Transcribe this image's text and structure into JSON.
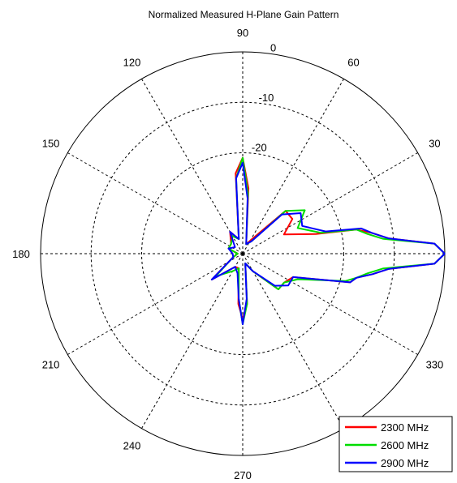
{
  "chart_data": {
    "type": "polar-line",
    "title": "Normalized Measured H-Plane Gain Pattern",
    "angle_ticks": [
      "0",
      "30",
      "60",
      "90",
      "120",
      "150",
      "180",
      "210",
      "240",
      "270",
      "300",
      "330"
    ],
    "angle_labels_shown": [
      "30",
      "60",
      "90",
      "120",
      "150",
      "180",
      "210",
      "240",
      "270",
      "330"
    ],
    "radial_ticks": [
      {
        "value": -20,
        "label": "-20"
      },
      {
        "value": -10,
        "label": "-10"
      },
      {
        "value": 0,
        "label": "0"
      }
    ],
    "r_min": -40,
    "r_max": 0,
    "grid": true,
    "legend_position": "bottom-right",
    "series": [
      {
        "name": "2300 MHz",
        "color": "#ff0000",
        "angles": [
          0,
          3,
          6,
          9,
          12,
          15,
          25,
          35,
          45,
          55,
          70,
          85,
          90,
          95,
          105,
          120,
          140,
          160,
          180,
          200,
          220,
          240,
          255,
          265,
          270,
          275,
          285,
          300,
          315,
          325,
          335,
          345,
          348,
          351,
          354,
          357,
          360
        ],
        "values": [
          0,
          -2,
          -11,
          -14,
          -17,
          -25,
          -31,
          -28,
          -28,
          -36,
          -38,
          -27,
          -21,
          -24,
          -37,
          -35,
          -37,
          -37,
          -39,
          -38,
          -32,
          -37,
          -37,
          -30,
          -27,
          -30,
          -38,
          -36,
          -30,
          -30,
          -29,
          -18,
          -17,
          -14,
          -11,
          -2,
          0
        ]
      },
      {
        "name": "2600 MHz",
        "color": "#00dd00",
        "angles": [
          0,
          3,
          6,
          9,
          12,
          15,
          25,
          35,
          45,
          55,
          70,
          85,
          90,
          95,
          105,
          120,
          140,
          160,
          180,
          200,
          220,
          240,
          255,
          265,
          270,
          275,
          285,
          300,
          315,
          325,
          335,
          345,
          348,
          351,
          354,
          357,
          360
        ],
        "values": [
          0,
          -2,
          -12,
          -15,
          -17,
          -24,
          -28,
          -25,
          -28,
          -37,
          -38,
          -28,
          -21,
          -25,
          -37,
          -36,
          -37,
          -37,
          -39,
          -38,
          -33,
          -36,
          -37,
          -31,
          -26,
          -30,
          -38,
          -36,
          -30,
          -30,
          -28,
          -19,
          -17,
          -15,
          -12,
          -2,
          0
        ]
      },
      {
        "name": "2900 MHz",
        "color": "#0000ff",
        "angles": [
          0,
          3,
          6,
          9,
          12,
          15,
          25,
          35,
          45,
          55,
          70,
          85,
          90,
          95,
          105,
          120,
          140,
          160,
          180,
          200,
          220,
          240,
          255,
          265,
          270,
          275,
          285,
          300,
          315,
          325,
          335,
          345,
          348,
          351,
          354,
          357,
          360
        ],
        "values": [
          0,
          -2,
          -11,
          -14,
          -16,
          -23,
          -27,
          -26,
          -29,
          -37,
          -38,
          -29,
          -22,
          -25,
          -37,
          -35,
          -38,
          -37,
          -38,
          -38,
          -32,
          -37,
          -36,
          -31,
          -26,
          -31,
          -38,
          -36,
          -31,
          -29,
          -29,
          -18,
          -17,
          -14,
          -11,
          -2,
          0
        ]
      }
    ]
  }
}
